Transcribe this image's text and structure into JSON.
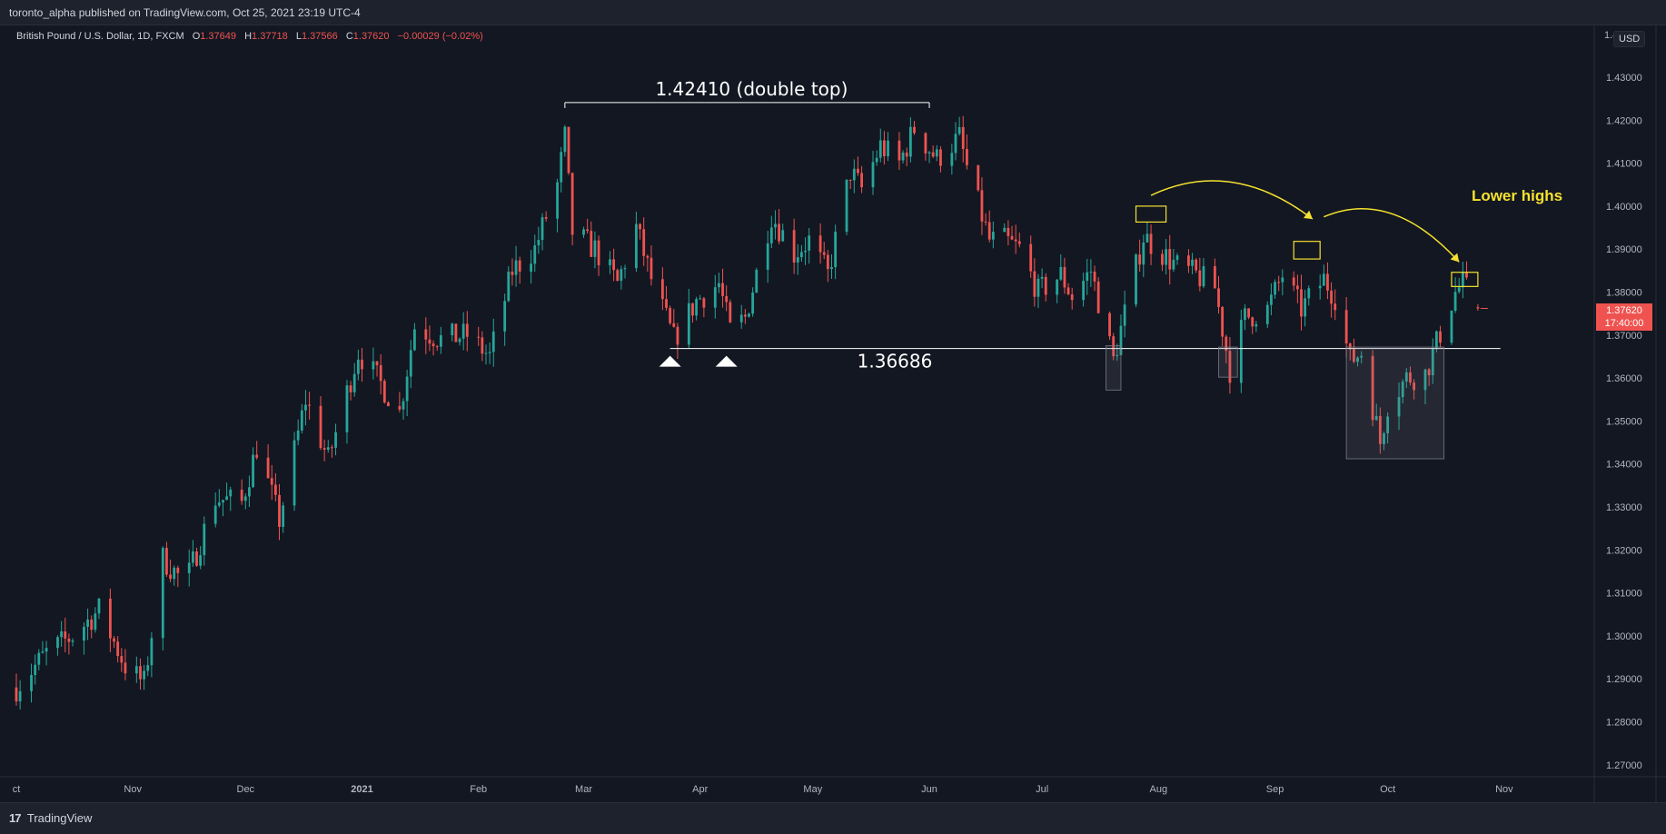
{
  "header": {
    "publisher_line": "toronto_alpha published on TradingView.com, Oct 25, 2021 23:19 UTC-4"
  },
  "legend": {
    "symbol": "British Pound / U.S. Dollar, 1D, FXCM",
    "o_label": "O",
    "o_value": "1.37649",
    "h_label": "H",
    "h_value": "1.37718",
    "l_label": "L",
    "l_value": "1.37566",
    "c_label": "C",
    "c_value": "1.37620",
    "change": "−0.00029 (−0.02%)"
  },
  "price_axis": {
    "currency_badge": "USD",
    "last_price": "1.37620",
    "countdown": "17:40:00"
  },
  "footer": {
    "brand": "TradingView",
    "logo_glyph": "17"
  },
  "colors": {
    "background": "#131722",
    "panel": "#1e222d",
    "up": "#26a69a",
    "down": "#ef5350",
    "annotation_white": "#ffffff",
    "annotation_yellow": "#f5e22f"
  },
  "annotations": {
    "double_top_label": "1.42410 (double top)",
    "support_label": "1.36686",
    "lower_highs_label": "Lower highs",
    "double_top_level": 1.4241,
    "support_level": 1.36686
  },
  "chart_data": {
    "type": "candlestick",
    "symbol": "GBP/USD",
    "timeframe": "1D",
    "y_ticks": [
      "1.43000",
      "1.42000",
      "1.41000",
      "1.40000",
      "1.39000",
      "1.38000",
      "1.37000",
      "1.36000",
      "1.35000",
      "1.34000",
      "1.33000",
      "1.32000",
      "1.31000",
      "1.30000",
      "1.29000",
      "1.28000",
      "1.27000"
    ],
    "y_top_label_partial": "1.4",
    "ylim": [
      1.266,
      1.44
    ],
    "x_ticks": [
      "ct",
      "Nov",
      "Dec",
      "2021",
      "Feb",
      "Mar",
      "Apr",
      "May",
      "Jun",
      "Jul",
      "Aug",
      "Sep",
      "Oct",
      "Nov"
    ],
    "x_tick_dates": [
      "2020-10-01",
      "2020-11-01",
      "2020-12-01",
      "2021-01-01",
      "2021-02-01",
      "2021-03-01",
      "2021-04-01",
      "2021-05-01",
      "2021-06-01",
      "2021-07-01",
      "2021-08-01",
      "2021-09-01",
      "2021-10-01",
      "2021-11-01"
    ],
    "anchors": [
      [
        "2020-10-01",
        1.288
      ],
      [
        "2020-10-09",
        1.296
      ],
      [
        "2020-10-16",
        1.3
      ],
      [
        "2020-10-23",
        1.306
      ],
      [
        "2020-10-30",
        1.293
      ],
      [
        "2020-11-04",
        1.289
      ],
      [
        "2020-11-09",
        1.318
      ],
      [
        "2020-11-15",
        1.312
      ],
      [
        "2020-11-23",
        1.332
      ],
      [
        "2020-11-30",
        1.331
      ],
      [
        "2020-12-04",
        1.344
      ],
      [
        "2020-12-10",
        1.327
      ],
      [
        "2020-12-17",
        1.355
      ],
      [
        "2020-12-23",
        1.341
      ],
      [
        "2020-12-31",
        1.366
      ],
      [
        "2021-01-05",
        1.36
      ],
      [
        "2021-01-11",
        1.352
      ],
      [
        "2021-01-15",
        1.372
      ],
      [
        "2021-01-22",
        1.369
      ],
      [
        "2021-01-29",
        1.37
      ],
      [
        "2021-02-04",
        1.365
      ],
      [
        "2021-02-10",
        1.385
      ],
      [
        "2021-02-16",
        1.39
      ],
      [
        "2021-02-22",
        1.405
      ],
      [
        "2021-02-24",
        1.416
      ],
      [
        "2021-02-26",
        1.394
      ],
      [
        "2021-03-04",
        1.39
      ],
      [
        "2021-03-10",
        1.382
      ],
      [
        "2021-03-15",
        1.395
      ],
      [
        "2021-03-19",
        1.383
      ],
      [
        "2021-03-25",
        1.369
      ],
      [
        "2021-03-31",
        1.378
      ],
      [
        "2021-04-06",
        1.382
      ],
      [
        "2021-04-09",
        1.371
      ],
      [
        "2021-04-13",
        1.374
      ],
      [
        "2021-04-20",
        1.398
      ],
      [
        "2021-04-26",
        1.389
      ],
      [
        "2021-04-30",
        1.392
      ],
      [
        "2021-05-05",
        1.384
      ],
      [
        "2021-05-11",
        1.408
      ],
      [
        "2021-05-14",
        1.404
      ],
      [
        "2021-05-19",
        1.414
      ],
      [
        "2021-05-24",
        1.41
      ],
      [
        "2021-05-28",
        1.418
      ],
      [
        "2021-06-03",
        1.411
      ],
      [
        "2021-06-09",
        1.416
      ],
      [
        "2021-06-11",
        1.409
      ],
      [
        "2021-06-17",
        1.392
      ],
      [
        "2021-06-21",
        1.392
      ],
      [
        "2021-06-25",
        1.39
      ],
      [
        "2021-06-30",
        1.38
      ],
      [
        "2021-07-06",
        1.384
      ],
      [
        "2021-07-09",
        1.379
      ],
      [
        "2021-07-14",
        1.385
      ],
      [
        "2021-07-20",
        1.364
      ],
      [
        "2021-07-23",
        1.375
      ],
      [
        "2021-07-28",
        1.393
      ],
      [
        "2021-08-02",
        1.389
      ],
      [
        "2021-08-06",
        1.386
      ],
      [
        "2021-08-11",
        1.384
      ],
      [
        "2021-08-16",
        1.381
      ],
      [
        "2021-08-20",
        1.362
      ],
      [
        "2021-08-24",
        1.374
      ],
      [
        "2021-08-30",
        1.376
      ],
      [
        "2021-09-03",
        1.384
      ],
      [
        "2021-09-08",
        1.376
      ],
      [
        "2021-09-14",
        1.383
      ],
      [
        "2021-09-17",
        1.379
      ],
      [
        "2021-09-21",
        1.364
      ],
      [
        "2021-09-24",
        1.366
      ],
      [
        "2021-09-29",
        1.345
      ],
      [
        "2021-10-01",
        1.354
      ],
      [
        "2021-10-06",
        1.36
      ],
      [
        "2021-10-11",
        1.361
      ],
      [
        "2021-10-14",
        1.368
      ],
      [
        "2021-10-19",
        1.38
      ],
      [
        "2021-10-21",
        1.382
      ],
      [
        "2021-10-25",
        1.3762
      ]
    ]
  }
}
